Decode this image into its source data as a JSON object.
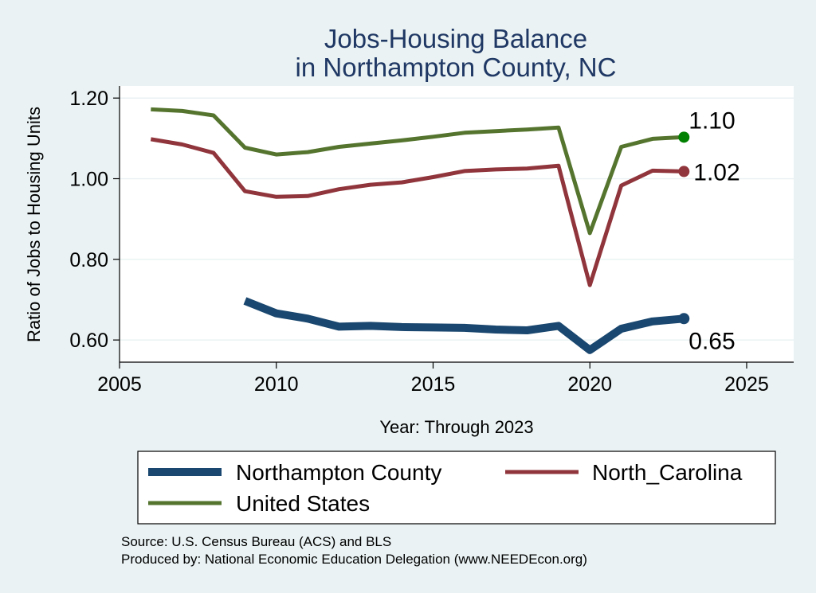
{
  "chart_data": {
    "type": "line",
    "title": [
      "Jobs-Housing Balance",
      "in Northampton County, NC"
    ],
    "xlabel": "Year: Through 2023",
    "ylabel": "Ratio of Jobs to Housing Units",
    "xlim": [
      2005,
      2026.5
    ],
    "ylim": [
      0.545,
      1.23
    ],
    "x_ticks": [
      "2005",
      "2010",
      "2015",
      "2020",
      "2025"
    ],
    "y_ticks": [
      "0.60",
      "0.80",
      "1.00",
      "1.20"
    ],
    "grid": true,
    "legend_position": "bottom",
    "series": [
      {
        "name": "Northampton County",
        "color": "#1a476f",
        "end_label": "0.65",
        "x": [
          2009,
          2010,
          2011,
          2012,
          2013,
          2014,
          2015,
          2016,
          2017,
          2018,
          2019,
          2020,
          2021,
          2022,
          2023
        ],
        "y": [
          0.697,
          0.666,
          0.653,
          0.633,
          0.635,
          0.632,
          0.631,
          0.63,
          0.626,
          0.624,
          0.635,
          0.575,
          0.628,
          0.646,
          0.653
        ]
      },
      {
        "name": "North_Carolina",
        "color": "#90353b",
        "end_label": "1.02",
        "x": [
          2006,
          2007,
          2008,
          2009,
          2010,
          2011,
          2012,
          2013,
          2014,
          2015,
          2016,
          2017,
          2018,
          2019,
          2020,
          2021,
          2022,
          2023
        ],
        "y": [
          1.098,
          1.085,
          1.064,
          0.969,
          0.955,
          0.957,
          0.974,
          0.985,
          0.991,
          1.004,
          1.019,
          1.023,
          1.025,
          1.032,
          0.736,
          0.983,
          1.02,
          1.018
        ]
      },
      {
        "name": "United States",
        "color": "#55752f",
        "end_label": "1.10",
        "x": [
          2006,
          2007,
          2008,
          2009,
          2010,
          2011,
          2012,
          2013,
          2014,
          2015,
          2016,
          2017,
          2018,
          2019,
          2020,
          2021,
          2022,
          2023
        ],
        "y": [
          1.172,
          1.168,
          1.157,
          1.077,
          1.06,
          1.066,
          1.079,
          1.087,
          1.095,
          1.104,
          1.114,
          1.118,
          1.122,
          1.127,
          0.865,
          1.079,
          1.099,
          1.103
        ]
      }
    ],
    "end_marker_colors": [
      "#1a476f",
      "#90353b",
      "#008000"
    ],
    "source_lines": [
      "Source: U.S. Census Bureau (ACS) and BLS",
      "Produced by: National Economic Education Delegation (www.NEEDEcon.org)"
    ]
  }
}
